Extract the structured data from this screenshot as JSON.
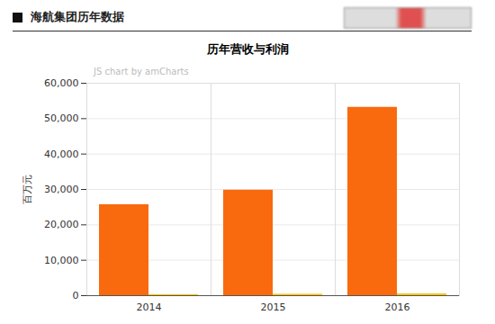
{
  "header": "海航集团历年数据",
  "chart_data": {
    "type": "bar",
    "title": "历年营收与利润",
    "ylabel": "百万元",
    "annotations": [
      "JS chart by amCharts"
    ],
    "categories": [
      "2014",
      "2015",
      "2016"
    ],
    "series": [
      {
        "color": "#f96a0e",
        "values": [
          25700,
          29800,
          53200
        ]
      },
      {
        "color": "#f5c518",
        "values": [
          300,
          400,
          500
        ]
      }
    ],
    "ylim": [
      0,
      60000
    ],
    "yticks": [
      0,
      {
        "value": 10000,
        "label": "10,000"
      },
      {
        "value": 20000,
        "label": "20,000"
      },
      {
        "value": 30000,
        "label": "30,000"
      },
      {
        "value": 40000,
        "label": "40,000"
      },
      {
        "value": 50000,
        "label": "50,000"
      },
      {
        "value": 60000,
        "label": "60,000"
      }
    ],
    "grid": true,
    "data_labels": false
  }
}
